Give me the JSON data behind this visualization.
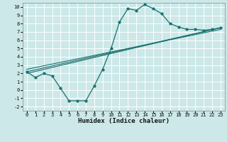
{
  "xlabel": "Humidex (Indice chaleur)",
  "bg_color": "#cce8e8",
  "grid_color": "#ffffff",
  "line_color": "#1a7070",
  "xlim": [
    -0.5,
    23.5
  ],
  "ylim": [
    -2.5,
    10.5
  ],
  "xticks": [
    0,
    1,
    2,
    3,
    4,
    5,
    6,
    7,
    8,
    9,
    10,
    11,
    12,
    13,
    14,
    15,
    16,
    17,
    18,
    19,
    20,
    21,
    22,
    23
  ],
  "yticks": [
    -2,
    -1,
    0,
    1,
    2,
    3,
    4,
    5,
    6,
    7,
    8,
    9,
    10
  ],
  "curve_x": [
    0,
    1,
    2,
    3,
    4,
    5,
    6,
    7,
    8,
    9,
    10,
    11,
    12,
    13,
    14,
    15,
    16,
    17,
    18,
    19,
    20,
    21,
    22,
    23
  ],
  "curve_y": [
    2.2,
    1.5,
    2.0,
    1.7,
    0.2,
    -1.3,
    -1.3,
    -1.3,
    0.5,
    2.5,
    5.0,
    8.2,
    9.8,
    9.6,
    10.3,
    9.8,
    9.2,
    8.0,
    7.6,
    7.3,
    7.3,
    7.2,
    7.3,
    7.5
  ],
  "ref_lines": [
    {
      "x": [
        0,
        23
      ],
      "y": [
        2.2,
        7.5
      ]
    },
    {
      "x": [
        0,
        23
      ],
      "y": [
        2.5,
        7.3
      ]
    },
    {
      "x": [
        0,
        23
      ],
      "y": [
        2.0,
        7.5
      ]
    }
  ]
}
